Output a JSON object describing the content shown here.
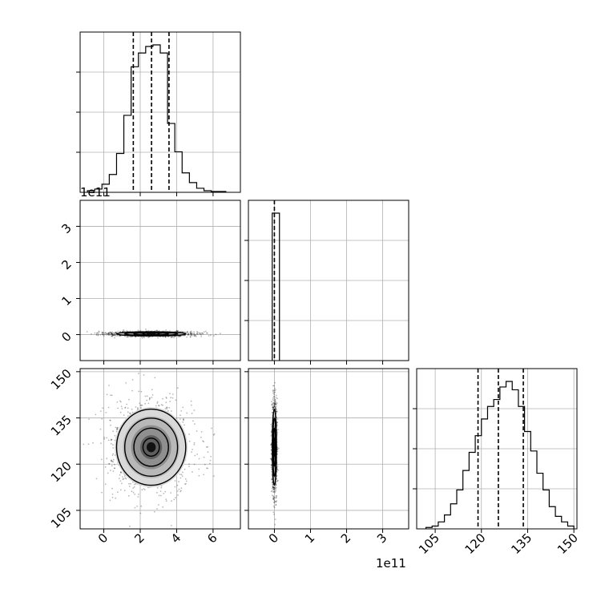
{
  "chart_data": {
    "type": "corner",
    "parameters": [
      {
        "axis_multiplier": "1e11",
        "ticks": [
          "0",
          "2",
          "4",
          "6"
        ],
        "range": [
          -1.3,
          7.5
        ]
      },
      {
        "axis_multiplier": "1e11",
        "ticks": [
          "0",
          "1",
          "2",
          "3"
        ],
        "range": [
          -0.72,
          3.72
        ]
      },
      {
        "axis_multiplier": "",
        "ticks": [
          "105",
          "120",
          "135",
          "150"
        ],
        "range": [
          99,
          151
        ]
      }
    ],
    "param1_offset_label": "1e11",
    "param2_offset_label": "1e11",
    "grid": true,
    "marginals": [
      {
        "panel": "param1",
        "bin_edges": [
          -0.9,
          -0.5,
          -0.1,
          0.3,
          0.7,
          1.1,
          1.5,
          1.9,
          2.3,
          2.7,
          3.1,
          3.5,
          3.9,
          4.3,
          4.7,
          5.1,
          5.5,
          5.9,
          6.3,
          6.7
        ],
        "counts": [
          2,
          4,
          10,
          22,
          48,
          95,
          155,
          172,
          180,
          182,
          172,
          85,
          50,
          24,
          12,
          5,
          2,
          1,
          1
        ],
        "quantiles": [
          1.62,
          2.62,
          3.58
        ]
      },
      {
        "panel": "param2",
        "bin_edges": [
          -0.06,
          0.14
        ],
        "counts": [
          1
        ],
        "quantiles": [
          0.0
        ]
      },
      {
        "panel": "param3",
        "bin_edges": [
          102,
          104,
          106,
          108,
          110,
          112,
          114,
          116,
          118,
          120,
          122,
          124,
          126,
          128,
          130,
          132,
          134,
          136,
          138,
          140,
          142,
          144,
          146,
          148,
          150
        ],
        "counts": [
          1,
          2,
          5,
          10,
          18,
          28,
          42,
          55,
          67,
          79,
          88,
          93,
          102,
          106,
          100,
          88,
          70,
          56,
          40,
          28,
          16,
          9,
          5,
          2
        ],
        "quantiles": [
          118.9,
          125.5,
          133.6
        ]
      }
    ],
    "contours": [
      {
        "panel": "param1-vs-param2",
        "center": [
          2.6,
          0.02
        ],
        "sigma": [
          1.0,
          0.03
        ]
      },
      {
        "panel": "param1-vs-param3",
        "center": [
          2.6,
          125.5
        ],
        "sigma": [
          1.0,
          6.5
        ]
      },
      {
        "panel": "param2-vs-param3",
        "center": [
          0.0,
          125.5
        ],
        "sigma": [
          0.03,
          6.5
        ]
      }
    ]
  }
}
